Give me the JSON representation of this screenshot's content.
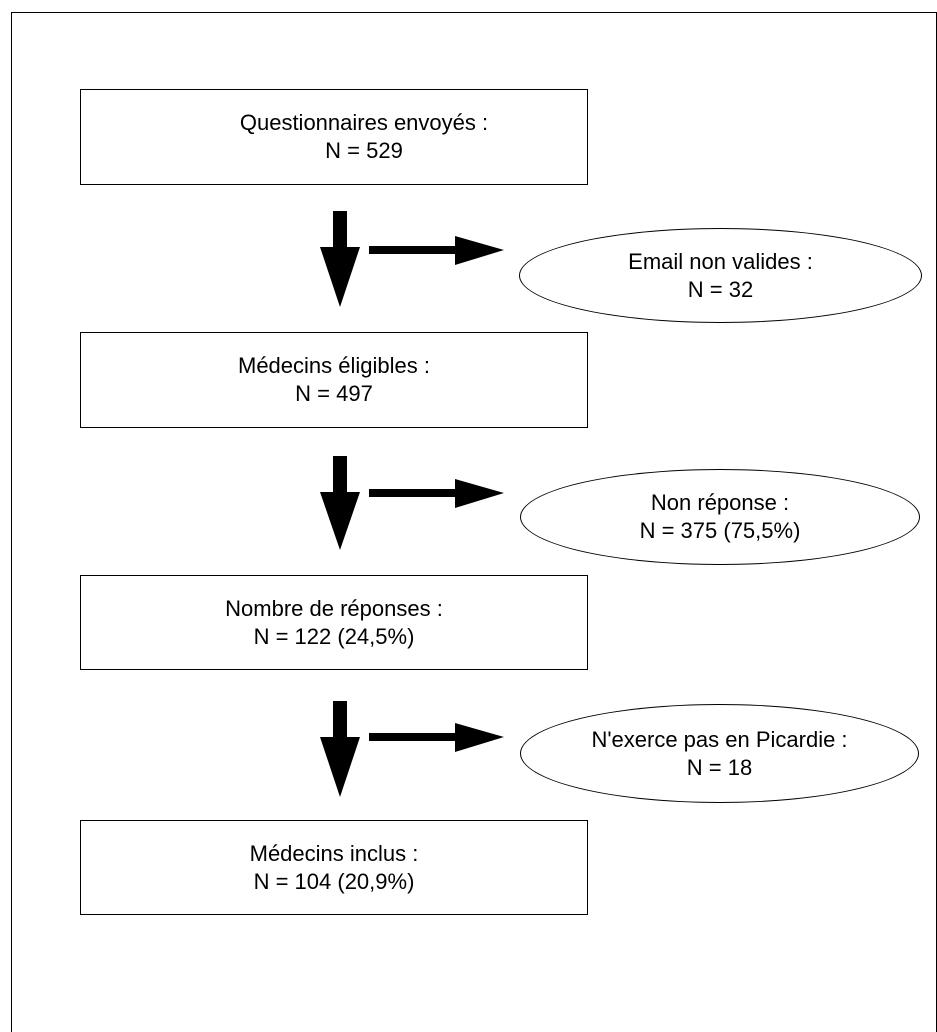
{
  "boxes": {
    "sent": {
      "label": "Questionnaires envoyés :",
      "count": "N = 529"
    },
    "eligible": {
      "label": "Médecins éligibles :",
      "count": "N = 497"
    },
    "responses": {
      "label": "Nombre de réponses :",
      "count": "N = 122 (24,5%)"
    },
    "included": {
      "label": "Médecins inclus :",
      "count": "N = 104 (20,9%)"
    }
  },
  "exclusions": {
    "invalid_email": {
      "label": "Email non valides :",
      "count": "N = 32"
    },
    "no_response": {
      "label": "Non réponse :",
      "count": "N = 375 (75,5%)"
    },
    "not_in_picardie": {
      "label": "N'exerce pas en Picardie :",
      "count": "N = 18"
    }
  }
}
